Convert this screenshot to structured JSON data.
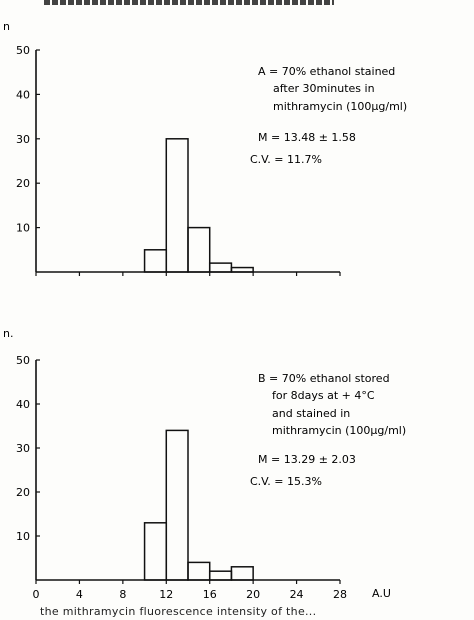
{
  "chart_data": [
    {
      "type": "bar",
      "panel": "A",
      "ylabel": "n",
      "ylim": [
        0,
        50
      ],
      "yticks": [
        10,
        20,
        30,
        40,
        50
      ],
      "xlim": [
        0,
        28
      ],
      "bin_edges": [
        10,
        12,
        14,
        16,
        18,
        20
      ],
      "values": [
        5,
        30,
        10,
        2,
        1
      ],
      "annotation": {
        "line1": "A = 70% ethanol stained",
        "line2": "after 30minutes in",
        "line3": "mithramycin (100µg/ml)",
        "mean": "M = 13.48 ± 1.58",
        "cv": "C.V. = 11.7%"
      }
    },
    {
      "type": "bar",
      "panel": "B",
      "ylabel": "n.",
      "xlabel": "A.U",
      "ylim": [
        0,
        50
      ],
      "yticks": [
        10,
        20,
        30,
        40,
        50
      ],
      "xlim": [
        0,
        28
      ],
      "xticks": [
        0,
        4,
        8,
        12,
        16,
        20,
        24,
        28
      ],
      "bin_edges": [
        10,
        12,
        14,
        16,
        18,
        20
      ],
      "values": [
        13,
        34,
        4,
        2,
        3
      ],
      "annotation": {
        "line1": "B = 70% ethanol stored",
        "line2": "for 8days at + 4°C",
        "line3": "and stained in",
        "line4": "mithramycin (100µg/ml)",
        "mean": "M = 13.29 ± 2.03",
        "cv": "C.V. = 15.3%"
      }
    }
  ],
  "footer_text": "the mithramycin fluorescence intensity of the..."
}
